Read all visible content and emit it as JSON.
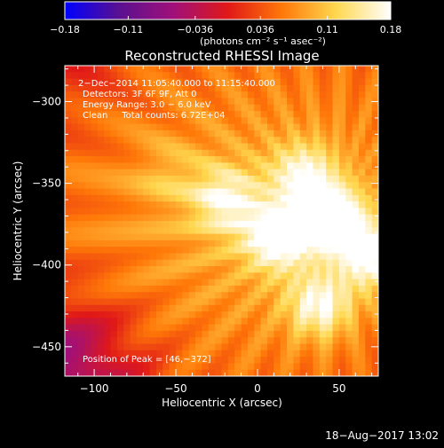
{
  "chart_data": {
    "type": "heatmap",
    "title": "Reconstructed RHESSI Image",
    "colorbar": {
      "ticks": [
        {
          "value": -0.18,
          "label": "−0.18"
        },
        {
          "value": -0.11,
          "label": "−0.11"
        },
        {
          "value": -0.036,
          "label": "−0.036"
        },
        {
          "value": 0.036,
          "label": "0.036"
        },
        {
          "value": 0.11,
          "label": "0.11"
        },
        {
          "value": 0.18,
          "label": "0.18"
        }
      ],
      "range": [
        -0.18,
        0.18
      ],
      "units_label": "(photons cm⁻² s⁻¹ asec⁻²)",
      "colormap": [
        "#0000ff",
        "#5a1090",
        "#a0107a",
        "#e01818",
        "#ff7808",
        "#ffd850",
        "#ffffff"
      ]
    },
    "xlabel": "Heliocentric X (arcsec)",
    "ylabel": "Heliocentric Y (arcsec)",
    "xlim": [
      -118,
      74
    ],
    "ylim": [
      -468,
      -278
    ],
    "xticks": [
      {
        "value": -100,
        "label": "−100"
      },
      {
        "value": -50,
        "label": "−50"
      },
      {
        "value": 0,
        "label": "0"
      },
      {
        "value": 50,
        "label": "50"
      }
    ],
    "yticks": [
      {
        "value": -300,
        "label": "−300"
      },
      {
        "value": -350,
        "label": "−350"
      },
      {
        "value": -400,
        "label": "−400"
      },
      {
        "value": -450,
        "label": "−450"
      }
    ],
    "annotations": [
      "2−Dec−2014 11:05:40.000 to 11:15:40.000",
      "Detectors: 3F 6F 9F, Att 0",
      "Energy Range: 3.0 − 6.0 keV",
      "Clean     Total counts: 6.72E+04"
    ],
    "peak_label": "Position of Peak = [46,−372]",
    "peak": [
      46,
      -372
    ],
    "sources": [
      {
        "x": 46,
        "y": -372,
        "flux": 0.2
      },
      {
        "x": 12,
        "y": -383,
        "flux": 0.18
      },
      {
        "x": 70,
        "y": -395,
        "flux": 0.17
      },
      {
        "x": -20,
        "y": -360,
        "flux": 0.15
      },
      {
        "x": 38,
        "y": -425,
        "flux": 0.16
      },
      {
        "x": 28,
        "y": -345,
        "flux": 0.15
      },
      {
        "x": -55,
        "y": -345,
        "flux": 0.09
      }
    ]
  },
  "footer": {
    "timestamp": "18−Aug−2017 13:02"
  }
}
